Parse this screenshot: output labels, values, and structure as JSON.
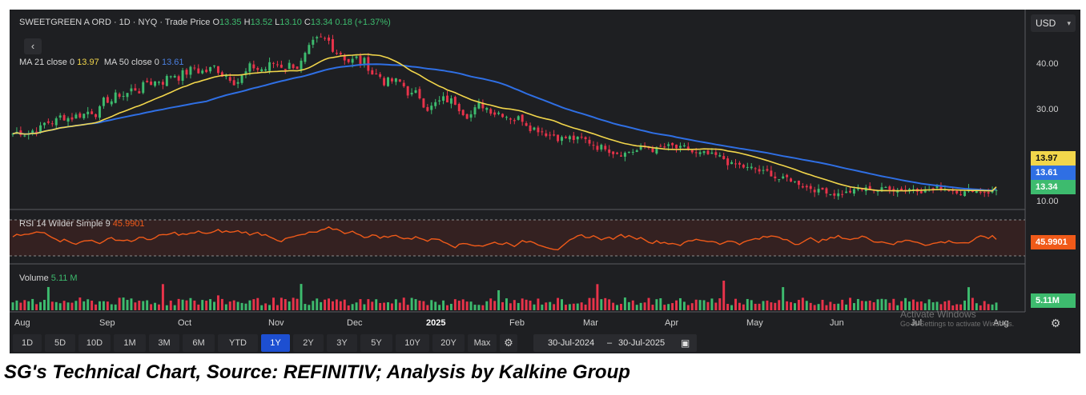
{
  "header": {
    "symbol": "SWEETGREEN A ORD · 1D · NYQ · Trade Price",
    "o_label": "O",
    "o_value": "13.35",
    "h_label": "H",
    "h_value": "13.52",
    "l_label": "L",
    "l_value": "13.10",
    "c_label": "C",
    "c_value": "13.34",
    "change": "0.18 (+1.37%)"
  },
  "ma_legend": {
    "ma21_label": "MA 21 close 0",
    "ma21_value": "13.97",
    "ma50_label": "MA 50 close 0",
    "ma50_value": "13.61"
  },
  "rsi_legend": {
    "label": "RSI 14 Wilder Simple 9",
    "value": "45.9901"
  },
  "volume_legend": {
    "label": "Volume",
    "value": "5.11 M"
  },
  "currency": "USD",
  "price_tags": {
    "ma21": "13.97",
    "ma50": "13.61",
    "last": "13.34"
  },
  "rsi_tag": "45.9901",
  "volume_tag": "5.11M",
  "y_ticks": [
    "40.00",
    "30.00",
    "10.00"
  ],
  "months": [
    "Aug",
    "Sep",
    "Oct",
    "Nov",
    "Dec",
    "2025",
    "Feb",
    "Mar",
    "Apr",
    "May",
    "Jun",
    "Jul",
    "Aug"
  ],
  "ranges": [
    "1D",
    "5D",
    "10D",
    "1M",
    "3M",
    "6M",
    "YTD",
    "1Y",
    "2Y",
    "3Y",
    "5Y",
    "10Y",
    "20Y",
    "Max"
  ],
  "active_range": "1Y",
  "date_from": "30-Jul-2024",
  "date_sep": "–",
  "date_to": "30-Jul-2025",
  "watermark_line1": "Activate Windows",
  "watermark_line2": "Go to Settings to activate Windows.",
  "caption": "SG's Technical Chart, Source: REFINITIV; Analysis by Kalkine Group",
  "colors": {
    "up": "#3dbb6e",
    "down": "#e8334a",
    "ma21": "#f2d64b",
    "ma50": "#2f6fe4",
    "rsi": "#f05a19",
    "background": "#1e1f22"
  },
  "chart_data": {
    "type": "candlestick",
    "x_range": [
      "30-Jul-2024",
      "30-Jul-2025"
    ],
    "y_ticks": [
      10,
      30,
      40
    ],
    "last": {
      "open": 13.35,
      "high": 13.52,
      "low": 13.1,
      "close": 13.34
    },
    "close_by_month": [
      {
        "x": "Aug",
        "y": 24
      },
      {
        "x": "Sep",
        "y": 29
      },
      {
        "x": "Oct",
        "y": 36
      },
      {
        "x": "Nov",
        "y": 36
      },
      {
        "x": "Dec",
        "y": 40
      },
      {
        "x": "2025",
        "y": 30
      },
      {
        "x": "Feb",
        "y": 29
      },
      {
        "x": "Mar",
        "y": 22
      },
      {
        "x": "Apr",
        "y": 21
      },
      {
        "x": "May",
        "y": 17
      },
      {
        "x": "Jun",
        "y": 13
      },
      {
        "x": "Jul",
        "y": 14
      },
      {
        "x": "Aug",
        "y": 13.34
      }
    ],
    "series": [
      {
        "name": "MA 21 close 0",
        "last": 13.97
      },
      {
        "name": "MA 50 close 0",
        "last": 13.61
      },
      {
        "name": "RSI 14 Wilder Simple 9",
        "last": 45.9901
      },
      {
        "name": "Volume",
        "last": "5.11 M"
      }
    ]
  }
}
